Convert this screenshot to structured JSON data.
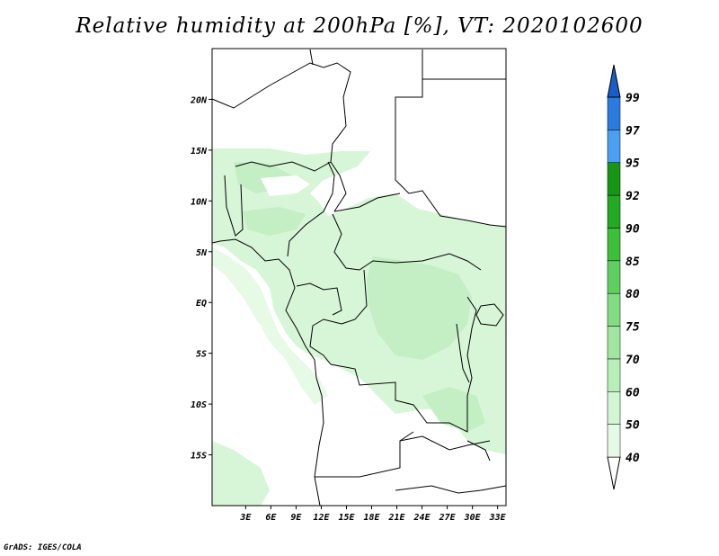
{
  "title": "Relative humidity at 200hPa [%], VT: 2020102600",
  "credit": "GrADS: IGES/COLA",
  "map": {
    "lon_range": [
      -1,
      34
    ],
    "lat_range": [
      -20,
      25
    ],
    "lat_ticks": [
      {
        "value": 20,
        "label": "20N"
      },
      {
        "value": 15,
        "label": "15N"
      },
      {
        "value": 10,
        "label": "10N"
      },
      {
        "value": 5,
        "label": "5N"
      },
      {
        "value": 0,
        "label": "EQ"
      },
      {
        "value": -5,
        "label": "5S"
      },
      {
        "value": -10,
        "label": "10S"
      },
      {
        "value": -15,
        "label": "15S"
      }
    ],
    "lon_ticks": [
      {
        "value": 3,
        "label": "3E"
      },
      {
        "value": 6,
        "label": "6E"
      },
      {
        "value": 9,
        "label": "9E"
      },
      {
        "value": 12,
        "label": "12E"
      },
      {
        "value": 15,
        "label": "15E"
      },
      {
        "value": 18,
        "label": "18E"
      },
      {
        "value": 21,
        "label": "21E"
      },
      {
        "value": 24,
        "label": "24E"
      },
      {
        "value": 27,
        "label": "27E"
      },
      {
        "value": 30,
        "label": "30E"
      },
      {
        "value": 33,
        "label": "33E"
      }
    ]
  },
  "colorbar": {
    "levels": [
      "40",
      "50",
      "60",
      "70",
      "75",
      "80",
      "85",
      "90",
      "92",
      "95",
      "97",
      "99"
    ],
    "colors": [
      "#ffffff",
      "#e6fae6",
      "#d2f5d2",
      "#b8eeb8",
      "#a0e6a0",
      "#82dc82",
      "#5fd05f",
      "#3cc03c",
      "#22aa22",
      "#159615",
      "#4a9ff0",
      "#2a7ae0",
      "#1a5cc8"
    ]
  },
  "coastline_color": "#000000"
}
